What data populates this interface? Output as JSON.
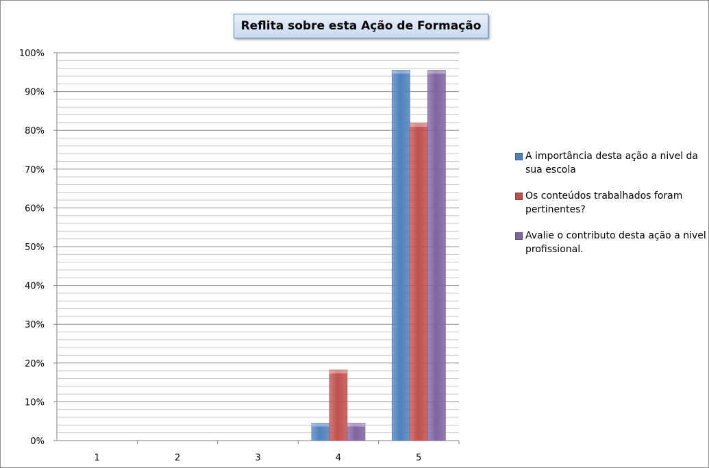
{
  "chart_data": {
    "type": "bar",
    "title": "Reflita sobre esta Ação de Formação",
    "xlabel": "",
    "ylabel": "",
    "categories": [
      "1",
      "2",
      "3",
      "4",
      "5"
    ],
    "ylim": [
      0,
      1
    ],
    "y_ticks": [
      "0%",
      "10%",
      "20%",
      "30%",
      "40%",
      "50%",
      "60%",
      "70%",
      "80%",
      "90%",
      "100%"
    ],
    "grid": true,
    "legend_position": "right",
    "series": [
      {
        "name": "A importância desta ação a nivel da sua escola",
        "color": "#4f81bd",
        "values": [
          0,
          0,
          0,
          0.045,
          0.955
        ]
      },
      {
        "name": "Os conteúdos trabalhados foram pertinentes?",
        "color": "#c0504d",
        "values": [
          0,
          0,
          0,
          0.182,
          0.818
        ]
      },
      {
        "name": "Avalie o contributo desta ação a nivel profissional.",
        "color": "#8064a2",
        "values": [
          0,
          0,
          0,
          0.045,
          0.955
        ]
      }
    ]
  }
}
